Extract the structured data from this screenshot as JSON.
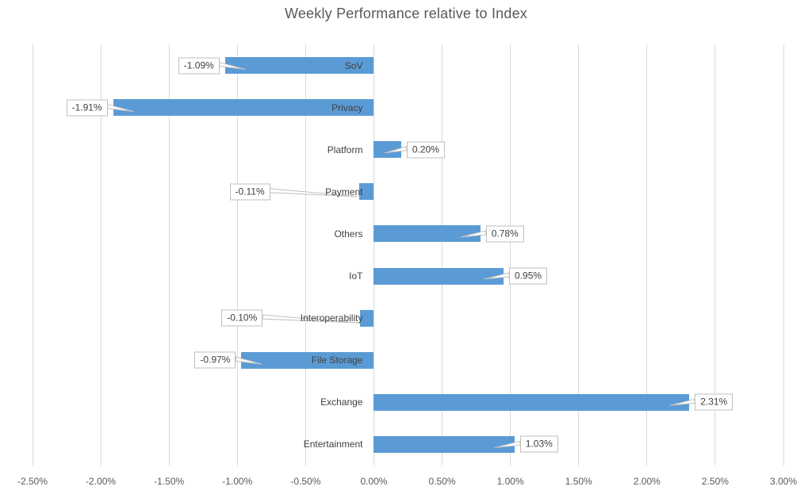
{
  "chart_data": {
    "type": "bar",
    "orientation": "horizontal",
    "title": "Weekly Performance relative to Index",
    "categories": [
      "SoV",
      "Privacy",
      "Platform",
      "Payment",
      "Others",
      "IoT",
      "Interoperability",
      "File Storage",
      "Exchange",
      "Entertainment"
    ],
    "values": [
      -1.09,
      -1.91,
      0.2,
      -0.11,
      0.78,
      0.95,
      -0.1,
      -0.97,
      2.31,
      1.03
    ],
    "data_labels": [
      "-1.09%",
      "-1.91%",
      "0.20%",
      "-0.11%",
      "0.78%",
      "0.95%",
      "-0.10%",
      "-0.97%",
      "2.31%",
      "1.03%"
    ],
    "xlabel": "",
    "ylabel": "",
    "xlim": [
      -2.5,
      3.0
    ],
    "x_tick_values": [
      -2.5,
      -2.0,
      -1.5,
      -1.0,
      -0.5,
      0.0,
      0.5,
      1.0,
      1.5,
      2.0,
      2.5,
      3.0
    ],
    "x_tick_labels": [
      "-2.50%",
      "-2.00%",
      "-1.50%",
      "-1.00%",
      "-0.50%",
      "0.00%",
      "0.50%",
      "1.00%",
      "1.50%",
      "2.00%",
      "2.50%",
      "3.00%"
    ],
    "legend": "none",
    "grid": "vertical-major",
    "data_label_style": "callout-boxes-with-leader-lines",
    "callout_long_leader_offsets": {
      "Payment": 105,
      "Interoperability": 116
    },
    "colors": {
      "bar": "#5b9bd5",
      "gridline": "#d9d9d9",
      "title_text": "#595959",
      "axis_text": "#595959",
      "category_text": "#404040",
      "callout_border": "#bfbfbf",
      "callout_bg": "#ffffff",
      "callout_text": "#404040",
      "background": "#ffffff"
    }
  }
}
